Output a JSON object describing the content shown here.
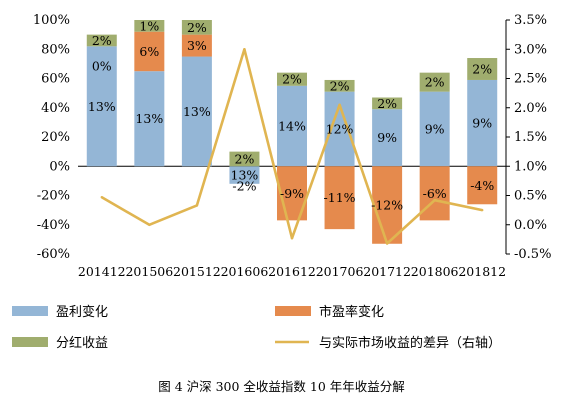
{
  "chart_data": {
    "type": "bar",
    "stacked": true,
    "categories": [
      "201412",
      "201506",
      "201512",
      "201606",
      "201612",
      "201706",
      "201712",
      "201806",
      "201812"
    ],
    "series": [
      {
        "name": "盈利变化",
        "axis": "left",
        "color": "#94B6D6",
        "values": [
          82,
          65,
          75,
          -12,
          55,
          51,
          39,
          51,
          59
        ],
        "labels": [
          "13%",
          "13%",
          "13%",
          "13%",
          "14%",
          "12%",
          "9%",
          "9%",
          "9%"
        ]
      },
      {
        "name": "市盈率变化",
        "axis": "left",
        "color": "#E58A4D",
        "values": [
          0,
          27,
          15,
          0,
          -37,
          -43,
          -53,
          -37,
          -26
        ],
        "labels": [
          "0%",
          "6%",
          "3%",
          "-2%",
          "-9%",
          "-11%",
          "-12%",
          "-6%",
          "-4%"
        ]
      },
      {
        "name": "分红收益",
        "axis": "left",
        "color": "#A0AD6E",
        "values": [
          8,
          8,
          10,
          10,
          9,
          8,
          8,
          13,
          15
        ],
        "labels": [
          "2%",
          "1%",
          "2%",
          "2%",
          "2%",
          "2%",
          "2%",
          "2%",
          "2%"
        ]
      },
      {
        "name": "与实际市场收益的差异（右轴）",
        "type": "line",
        "axis": "right",
        "color": "#E0B551",
        "values": [
          0.47,
          0.0,
          0.33,
          3.0,
          -0.23,
          2.05,
          -0.32,
          0.42,
          0.25
        ]
      }
    ],
    "yleft": {
      "min": -60,
      "max": 100,
      "step": 20,
      "suffix": "%"
    },
    "yright": {
      "min": -0.5,
      "max": 3.5,
      "step": 0.5,
      "suffix": "%",
      "decimals": 1
    },
    "legend": "bottom",
    "caption": "图 4 沪深 300 全收益指数 10 年年收益分解"
  }
}
